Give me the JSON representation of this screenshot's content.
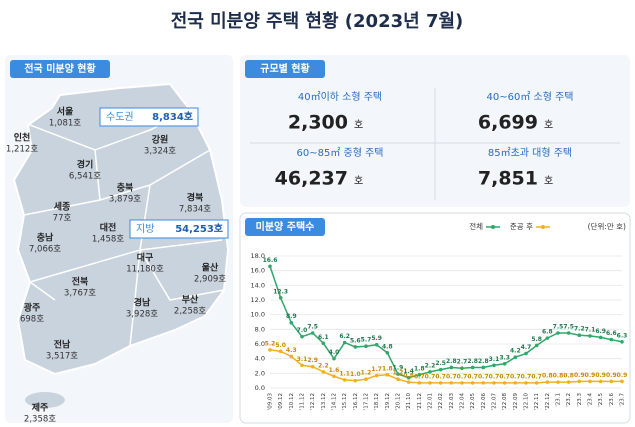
{
  "title": "전국 미분양 주택 현황 (2023년 7월)",
  "map": {
    "badge": "전국 미분양 현황",
    "regions": [
      {
        "name": "서울",
        "value": "1,081호"
      },
      {
        "name": "인천",
        "value": "1,212호"
      },
      {
        "name": "경기",
        "value": "6,541호"
      },
      {
        "name": "강원",
        "value": "3,324호"
      },
      {
        "name": "충북",
        "value": "3,879호"
      },
      {
        "name": "세종",
        "value": "77호"
      },
      {
        "name": "충남",
        "value": "7,066호"
      },
      {
        "name": "대전",
        "value": "1,458호"
      },
      {
        "name": "경북",
        "value": "7,834호"
      },
      {
        "name": "대구",
        "value": "11,180호"
      },
      {
        "name": "전북",
        "value": "3,767호"
      },
      {
        "name": "울산",
        "value": "2,909호"
      },
      {
        "name": "광주",
        "value": "698호"
      },
      {
        "name": "경남",
        "value": "3,928호"
      },
      {
        "name": "부산",
        "value": "2,258호"
      },
      {
        "name": "전남",
        "value": "3,517호"
      },
      {
        "name": "제주",
        "value": "2,358호"
      }
    ],
    "capital": {
      "name": "수도권",
      "value": "8,834호"
    },
    "local": {
      "name": "지방",
      "value": "54,253호"
    }
  },
  "size": {
    "badge": "규모별 현황",
    "items": [
      {
        "label": "40㎡이하 소형 주택",
        "value": "2,300",
        "unit": "호"
      },
      {
        "label": "40~60㎡ 소형 주택",
        "value": "6,699",
        "unit": "호"
      },
      {
        "label": "60~85㎡ 중형 주택",
        "value": "46,237",
        "unit": "호"
      },
      {
        "label": "85㎡초과 대형 주택",
        "value": "7,851",
        "unit": "호"
      }
    ]
  },
  "chart_data": {
    "type": "line",
    "title": "미분양 주택수",
    "unit": "(단위:만 호)",
    "categories": [
      "'09.03",
      "'09.12",
      "'10.12",
      "'11.12",
      "'12.12",
      "'13.12",
      "'14.12",
      "'15.12",
      "'16.12",
      "'17.12",
      "'18.12",
      "'19.12",
      "'20.12",
      "'21.10",
      "'21.12",
      "'22.01",
      "'22.02",
      "'22.03",
      "'22.04",
      "'22.05",
      "'22.06",
      "'22.07",
      "'22.08",
      "'22.09",
      "'22.10",
      "'22.11",
      "'22.12",
      "'23.1",
      "'23.2",
      "'23.3",
      "'23.4",
      "'23.5",
      "'23.6",
      "'23.7"
    ],
    "series": [
      {
        "name": "전체",
        "color": "#2ea86b",
        "values": [
          16.6,
          12.3,
          8.9,
          7.0,
          7.5,
          6.1,
          4.0,
          6.2,
          5.6,
          5.7,
          5.9,
          4.8,
          1.9,
          1.4,
          1.8,
          2.2,
          2.5,
          2.8,
          2.7,
          2.8,
          2.8,
          3.1,
          3.3,
          4.2,
          4.7,
          5.8,
          6.8,
          7.5,
          7.5,
          7.2,
          7.1,
          6.9,
          6.6,
          6.3
        ],
        "value_labels": [
          "16.6",
          "12.3",
          "8.9",
          "7.0",
          "7.5",
          "6.1",
          "4.0",
          "6.2",
          "5.6",
          "5.7",
          "5.9",
          "4.8",
          "1.9",
          "1.4",
          "1.8",
          "2.2",
          "2.5",
          "2.8",
          "2.7",
          "2.8",
          "2.8",
          "3.1",
          "3.3",
          "4.2",
          "4.7",
          "5.8",
          "6.8",
          "7.5",
          "7.5",
          "7.2",
          "7.1",
          "6.9",
          "6.6",
          "6.3"
        ]
      },
      {
        "name": "준공 후",
        "color": "#f2b01e",
        "values": [
          5.2,
          5.0,
          4.3,
          3.1,
          2.9,
          2.2,
          1.6,
          1.1,
          1.0,
          1.2,
          1.7,
          1.8,
          1.2,
          0.8,
          0.7,
          0.7,
          0.7,
          0.7,
          0.7,
          0.7,
          0.7,
          0.7,
          0.7,
          0.7,
          0.7,
          0.7,
          0.8,
          0.8,
          0.8,
          0.9,
          0.9,
          0.9,
          0.9,
          0.9
        ],
        "value_labels": [
          "5.2",
          "5.0",
          "4.3",
          "3.1",
          "2.9",
          "2.2",
          "1.6",
          "1.1",
          "1.0",
          "1.2",
          "1.7",
          "1.8",
          "1.2",
          "0.8",
          "0.7",
          "0.7",
          "0.7",
          "0.7",
          "0.7",
          "0.7",
          "0.7",
          "0.7",
          "0.7",
          "0.7",
          "0.7",
          "0.7",
          "0.8",
          "0.8",
          "0.8",
          "0.9",
          "0.9",
          "0.9",
          "0.9",
          "0.9"
        ]
      }
    ],
    "ylim": [
      0,
      18
    ],
    "yticks": [
      {
        "value": 0,
        "label": "0.0"
      },
      {
        "value": 2,
        "label": "2.0"
      },
      {
        "value": 4,
        "label": "4.0"
      },
      {
        "value": 6,
        "label": "6.0"
      },
      {
        "value": 8,
        "label": "8.0"
      },
      {
        "value": 10,
        "label": "10.0"
      },
      {
        "value": 12,
        "label": "12.0"
      },
      {
        "value": 14,
        "label": "14.0"
      },
      {
        "value": 16,
        "label": "16.0"
      },
      {
        "value": 18,
        "label": "18.0"
      }
    ],
    "grid": true
  }
}
